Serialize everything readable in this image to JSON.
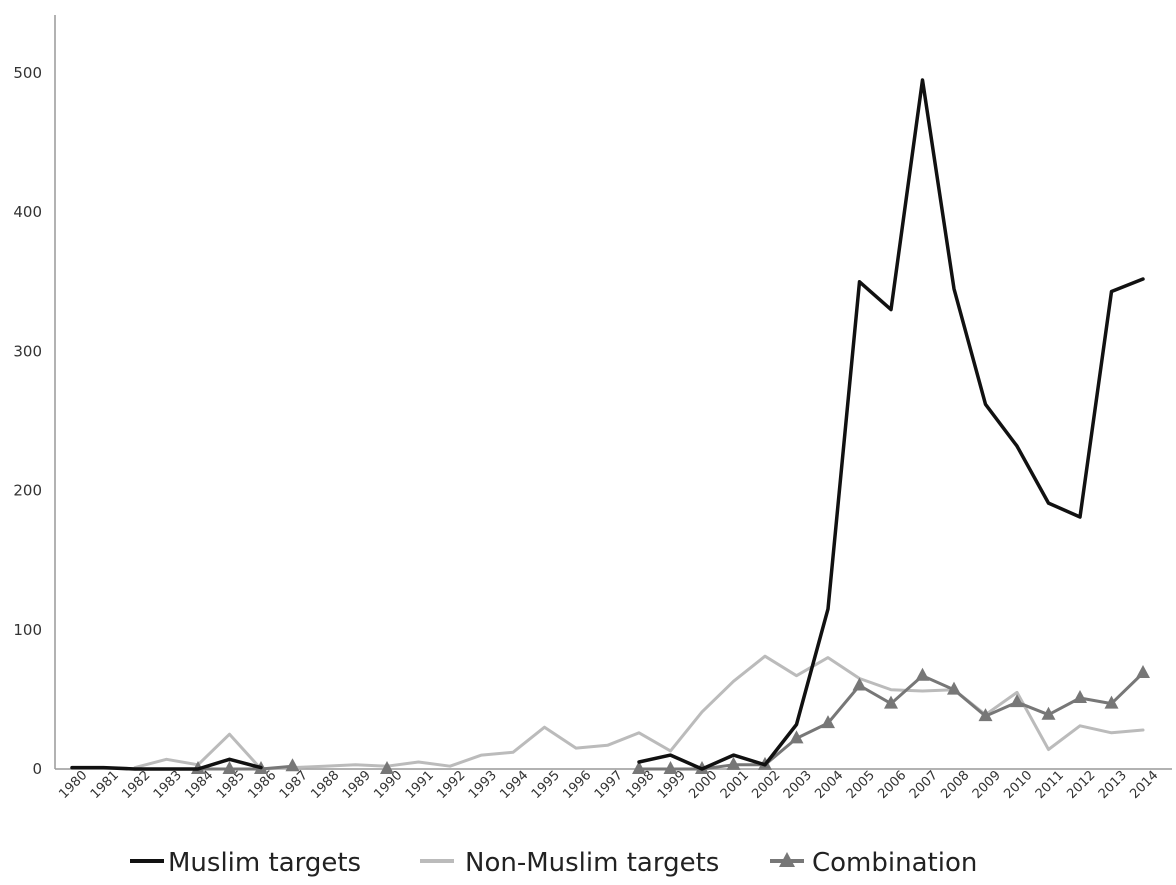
{
  "chart_data": {
    "type": "line",
    "categories": [
      "1980",
      "1981",
      "1982",
      "1983",
      "1984",
      "1985",
      "1986",
      "1987",
      "1988",
      "1989",
      "1990",
      "1991",
      "1992",
      "1993",
      "1994",
      "1995",
      "1996",
      "1997",
      "1998",
      "1999",
      "2000",
      "2001",
      "2002",
      "2003",
      "2004",
      "2005",
      "2006",
      "2007",
      "2008",
      "2009",
      "2010",
      "2011",
      "2012",
      "2013",
      "2014"
    ],
    "ylim": [
      0,
      500
    ],
    "yticks": [
      "0",
      "100",
      "200",
      "300",
      "400",
      "500"
    ],
    "grid": false,
    "legend_position": "bottom",
    "series": [
      {
        "name": "Muslim targets",
        "color": "#111111",
        "marker": "none",
        "values": [
          1,
          1,
          0,
          0,
          0,
          7,
          1,
          null,
          null,
          null,
          null,
          null,
          null,
          null,
          null,
          null,
          null,
          null,
          5,
          10,
          0,
          10,
          3,
          32,
          115,
          350,
          330,
          495,
          345,
          262,
          232,
          191,
          181,
          343,
          352
        ]
      },
      {
        "name": "Non-Muslim targets",
        "color": "#bbbbbb",
        "marker": "none",
        "values": [
          null,
          null,
          1,
          7,
          3,
          25,
          0,
          1,
          2,
          3,
          2,
          5,
          2,
          10,
          12,
          30,
          15,
          17,
          26,
          13,
          41,
          63,
          81,
          67,
          80,
          65,
          57,
          56,
          57,
          39,
          55,
          14,
          31,
          26,
          28
        ]
      },
      {
        "name": "Combination",
        "color": "#777777",
        "marker": "triangle",
        "values": [
          null,
          null,
          null,
          null,
          0,
          0,
          0,
          2,
          null,
          null,
          0,
          null,
          null,
          null,
          null,
          null,
          null,
          null,
          0,
          0,
          0,
          3,
          3,
          22,
          33,
          60,
          47,
          67,
          57,
          38,
          48,
          39,
          51,
          47,
          69
        ]
      }
    ]
  }
}
